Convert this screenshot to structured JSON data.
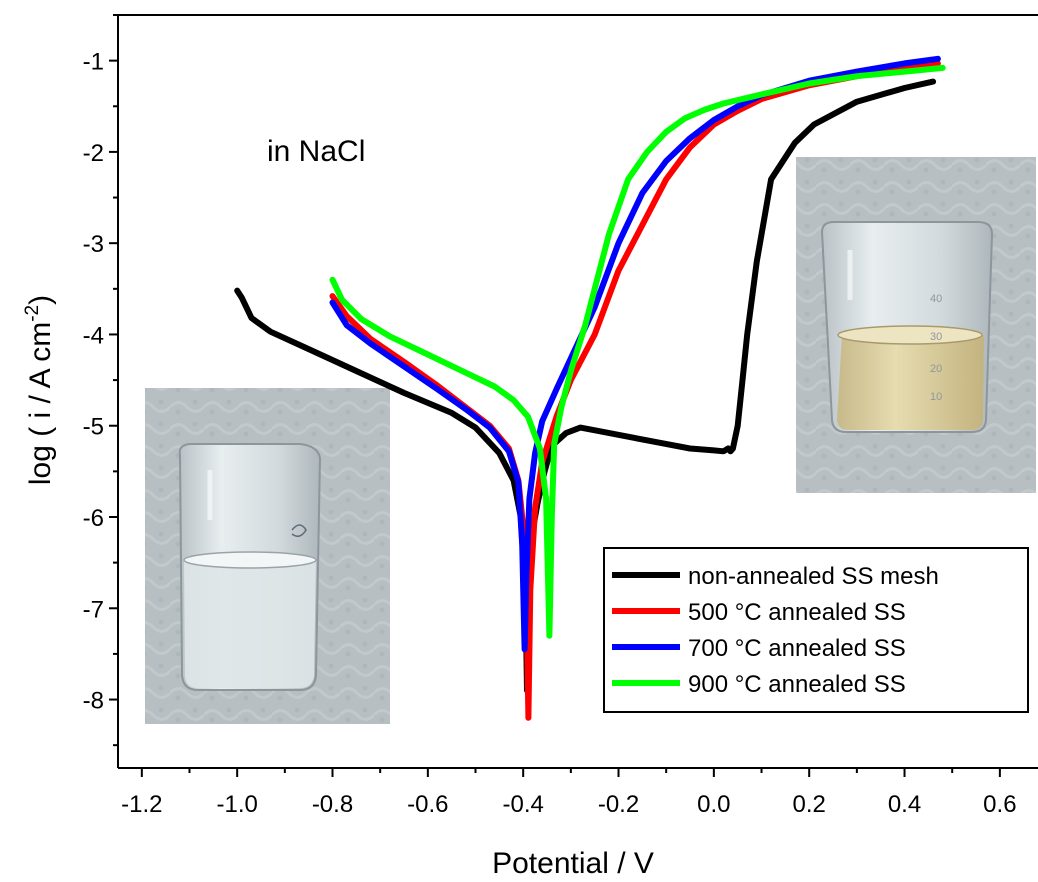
{
  "chart_data": {
    "type": "line",
    "xlabel": "Potential / V",
    "ylabel_parts": [
      "log ( i / A cm",
      "-2",
      ")"
    ],
    "xlim": [
      -1.25,
      0.68
    ],
    "ylim": [
      -8.75,
      -0.5
    ],
    "xticks": [
      -1.2,
      -1.0,
      -0.8,
      -0.6,
      -0.4,
      -0.2,
      0.0,
      0.2,
      0.4,
      0.6
    ],
    "xtick_labels": [
      "-1.2",
      "-1.0",
      "-0.8",
      "-0.6",
      "-0.4",
      "-0.2",
      "0.0",
      "0.2",
      "0.4",
      "0.6"
    ],
    "yticks": [
      -8,
      -7,
      -6,
      -5,
      -4,
      -3,
      -2,
      -1
    ],
    "ytick_labels": [
      "-8",
      "-7",
      "-6",
      "-5",
      "-4",
      "-3",
      "-2",
      "-1"
    ],
    "annotation": "in NaCl",
    "legend_position": "lower-right",
    "insets": [
      "beaker-clear-solution-photo",
      "beaker-yellow-solution-photo"
    ],
    "series": [
      {
        "name": "non-annealed SS mesh",
        "color": "#000000",
        "x": [
          -1.0,
          -0.99,
          -0.97,
          -0.93,
          -0.85,
          -0.75,
          -0.65,
          -0.55,
          -0.5,
          -0.45,
          -0.42,
          -0.405,
          -0.395,
          -0.392,
          -0.39,
          -0.385,
          -0.37,
          -0.355,
          -0.34,
          -0.31,
          -0.28,
          -0.24,
          -0.18,
          -0.12,
          -0.05,
          0.0,
          0.02,
          0.03,
          0.035,
          0.04,
          0.05,
          0.06,
          0.07,
          0.09,
          0.12,
          0.17,
          0.21,
          0.3,
          0.4,
          0.46
        ],
        "y": [
          -3.52,
          -3.6,
          -3.82,
          -3.97,
          -4.16,
          -4.4,
          -4.64,
          -4.86,
          -5.02,
          -5.3,
          -5.6,
          -6.0,
          -6.9,
          -7.9,
          -6.9,
          -6.3,
          -5.85,
          -5.5,
          -5.22,
          -5.08,
          -5.02,
          -5.06,
          -5.12,
          -5.18,
          -5.25,
          -5.27,
          -5.28,
          -5.25,
          -5.28,
          -5.25,
          -5.0,
          -4.5,
          -4.0,
          -3.2,
          -2.3,
          -1.9,
          -1.7,
          -1.45,
          -1.3,
          -1.23
        ]
      },
      {
        "name": "500 °C annealed SS",
        "color": "#ff0000",
        "x": [
          -0.8,
          -0.77,
          -0.72,
          -0.65,
          -0.58,
          -0.52,
          -0.47,
          -0.43,
          -0.41,
          -0.398,
          -0.392,
          -0.389,
          -0.385,
          -0.375,
          -0.36,
          -0.33,
          -0.3,
          -0.25,
          -0.2,
          -0.15,
          -0.1,
          -0.05,
          0.0,
          0.05,
          0.1,
          0.2,
          0.3,
          0.4,
          0.47
        ],
        "y": [
          -3.58,
          -3.8,
          -4.05,
          -4.3,
          -4.56,
          -4.8,
          -5.0,
          -5.25,
          -5.6,
          -6.2,
          -7.2,
          -8.2,
          -6.8,
          -5.9,
          -5.4,
          -4.9,
          -4.5,
          -4.0,
          -3.3,
          -2.8,
          -2.3,
          -1.95,
          -1.7,
          -1.55,
          -1.42,
          -1.27,
          -1.17,
          -1.08,
          -1.03
        ]
      },
      {
        "name": "700 °C annealed SS",
        "color": "#0000ff",
        "x": [
          -0.8,
          -0.77,
          -0.72,
          -0.65,
          -0.58,
          -0.52,
          -0.47,
          -0.43,
          -0.41,
          -0.402,
          -0.397,
          -0.393,
          -0.387,
          -0.375,
          -0.36,
          -0.33,
          -0.29,
          -0.25,
          -0.2,
          -0.15,
          -0.1,
          -0.05,
          0.0,
          0.05,
          0.1,
          0.2,
          0.3,
          0.4,
          0.47
        ],
        "y": [
          -3.65,
          -3.9,
          -4.1,
          -4.35,
          -4.6,
          -4.82,
          -5.02,
          -5.28,
          -5.62,
          -6.3,
          -7.45,
          -6.6,
          -5.8,
          -5.3,
          -4.95,
          -4.6,
          -4.15,
          -3.7,
          -3.0,
          -2.45,
          -2.1,
          -1.85,
          -1.65,
          -1.5,
          -1.38,
          -1.22,
          -1.12,
          -1.03,
          -0.98
        ]
      },
      {
        "name": "900 °C annealed SS",
        "color": "#00ff00",
        "x": [
          -0.8,
          -0.78,
          -0.74,
          -0.68,
          -0.6,
          -0.52,
          -0.46,
          -0.42,
          -0.39,
          -0.365,
          -0.352,
          -0.345,
          -0.34,
          -0.335,
          -0.32,
          -0.3,
          -0.27,
          -0.25,
          -0.22,
          -0.18,
          -0.14,
          -0.1,
          -0.06,
          -0.02,
          0.02,
          0.1,
          0.2,
          0.3,
          0.4,
          0.48
        ],
        "y": [
          -3.4,
          -3.62,
          -3.83,
          -4.02,
          -4.22,
          -4.42,
          -4.57,
          -4.72,
          -4.9,
          -5.25,
          -5.8,
          -7.3,
          -6.0,
          -5.2,
          -4.8,
          -4.4,
          -3.9,
          -3.5,
          -2.9,
          -2.3,
          -2.0,
          -1.78,
          -1.63,
          -1.54,
          -1.47,
          -1.37,
          -1.25,
          -1.17,
          -1.12,
          -1.08
        ]
      }
    ]
  }
}
